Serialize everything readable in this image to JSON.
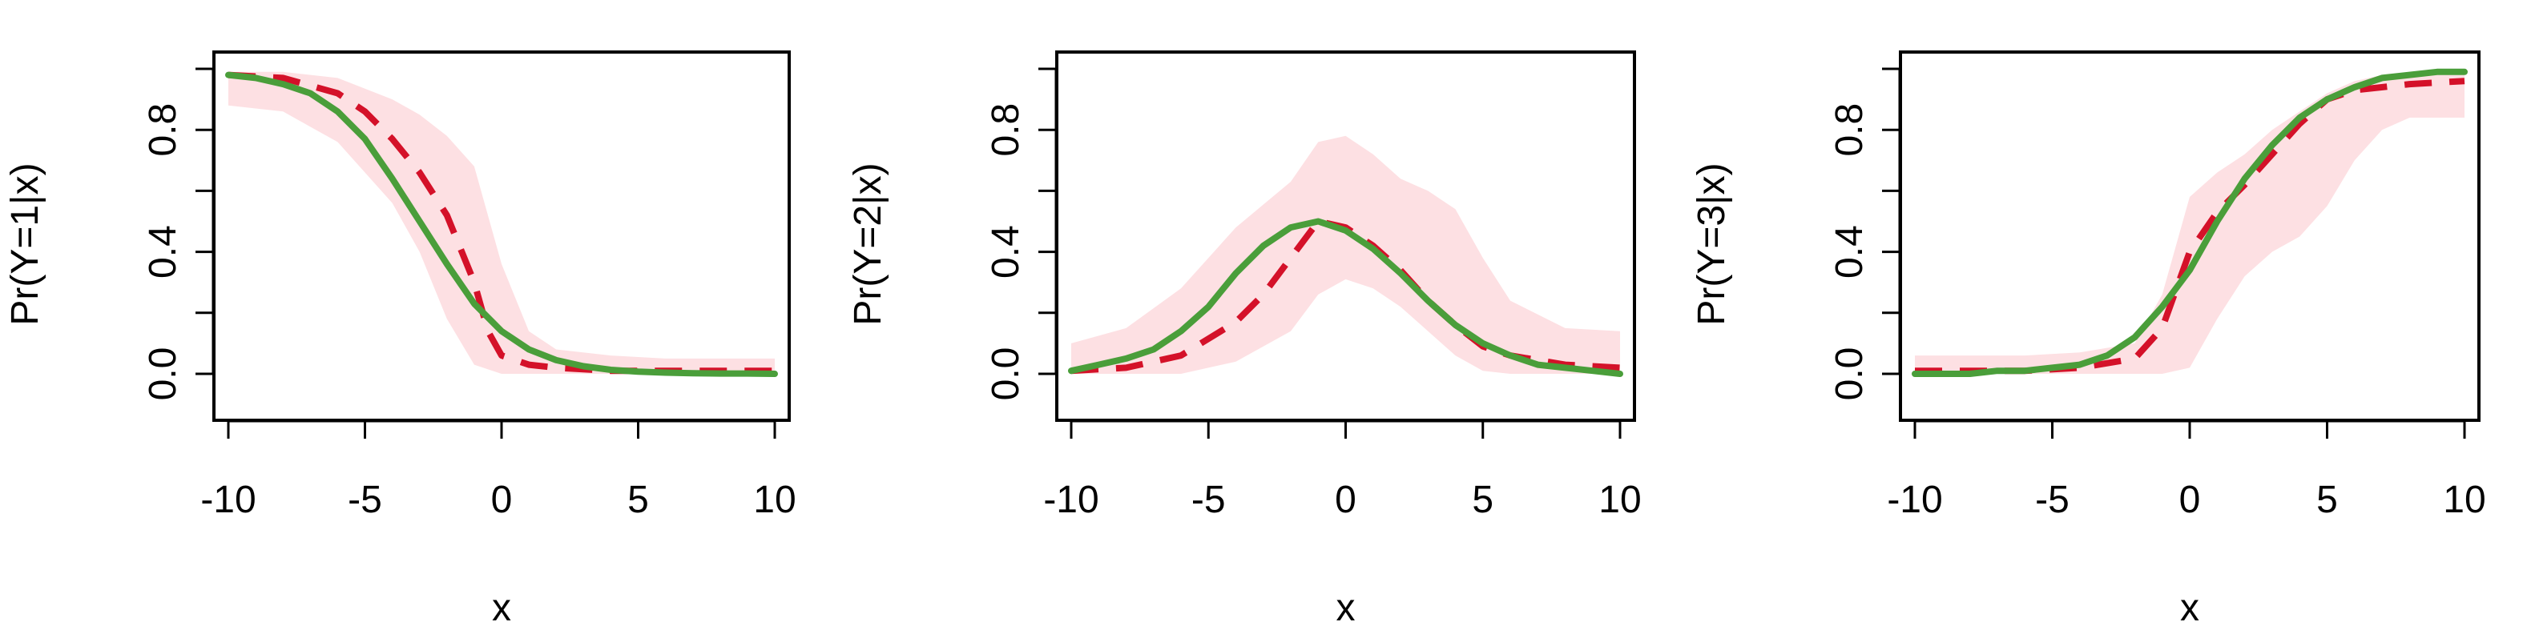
{
  "chart_data": [
    {
      "type": "line",
      "xlabel": "x",
      "ylabel": "Pr(Y=1|x)",
      "xlim": [
        -10,
        10
      ],
      "ylim": [
        0,
        1
      ],
      "xticks": [
        "-10",
        "-5",
        "0",
        "5",
        "10"
      ],
      "yticks": [
        "0.0",
        "0.4",
        "0.8"
      ],
      "grid": false,
      "band": {
        "color": "#fde0e3",
        "x": [
          -10,
          -8,
          -6,
          -4,
          -3,
          -2,
          -1,
          0,
          1,
          2,
          4,
          6,
          8,
          10
        ],
        "lower": [
          0.88,
          0.86,
          0.76,
          0.56,
          0.4,
          0.18,
          0.03,
          0.0,
          0.0,
          0.0,
          0.0,
          0.0,
          0.0,
          0.0
        ],
        "upper": [
          0.99,
          0.99,
          0.97,
          0.9,
          0.85,
          0.78,
          0.68,
          0.36,
          0.14,
          0.08,
          0.06,
          0.05,
          0.05,
          0.05
        ]
      },
      "series": [
        {
          "style": "dashed",
          "color": "#d41129",
          "x": [
            -10,
            -8,
            -6,
            -5,
            -4,
            -3,
            -2,
            -1,
            -0.5,
            0,
            1,
            2,
            4,
            6,
            8,
            10
          ],
          "y": [
            0.98,
            0.97,
            0.92,
            0.86,
            0.77,
            0.66,
            0.52,
            0.3,
            0.14,
            0.06,
            0.03,
            0.02,
            0.01,
            0.01,
            0.01,
            0.01
          ]
        },
        {
          "style": "solid",
          "color": "#4a9e3a",
          "x": [
            -10,
            -9,
            -8,
            -7,
            -6,
            -5,
            -4,
            -3,
            -2,
            -1,
            0,
            1,
            2,
            3,
            4,
            5,
            6,
            7,
            8,
            9,
            10
          ],
          "y": [
            0.98,
            0.97,
            0.95,
            0.92,
            0.86,
            0.77,
            0.64,
            0.5,
            0.36,
            0.23,
            0.14,
            0.08,
            0.045,
            0.025,
            0.013,
            0.007,
            0.004,
            0.002,
            0.001,
            0.001,
            0.0
          ]
        }
      ]
    },
    {
      "type": "line",
      "xlabel": "x",
      "ylabel": "Pr(Y=2|x)",
      "xlim": [
        -10,
        10
      ],
      "ylim": [
        0,
        1
      ],
      "xticks": [
        "-10",
        "-5",
        "0",
        "5",
        "10"
      ],
      "yticks": [
        "0.0",
        "0.4",
        "0.8"
      ],
      "grid": false,
      "band": {
        "color": "#fde0e3",
        "x": [
          -10,
          -8,
          -6,
          -4,
          -2,
          -1,
          0,
          1,
          2,
          3,
          4,
          5,
          6,
          8,
          10
        ],
        "lower": [
          0.0,
          0.0,
          0.0,
          0.04,
          0.14,
          0.26,
          0.31,
          0.28,
          0.22,
          0.14,
          0.06,
          0.01,
          0.0,
          0.0,
          0.0
        ],
        "upper": [
          0.1,
          0.15,
          0.28,
          0.48,
          0.63,
          0.76,
          0.78,
          0.72,
          0.64,
          0.6,
          0.54,
          0.38,
          0.24,
          0.15,
          0.14
        ]
      },
      "series": [
        {
          "style": "dashed",
          "color": "#d41129",
          "x": [
            -10,
            -8,
            -6,
            -4,
            -3,
            -2,
            -1,
            0,
            1,
            2,
            3,
            4,
            5,
            6,
            8,
            10
          ],
          "y": [
            0.01,
            0.02,
            0.06,
            0.17,
            0.26,
            0.38,
            0.5,
            0.48,
            0.42,
            0.34,
            0.24,
            0.16,
            0.09,
            0.06,
            0.03,
            0.02
          ]
        },
        {
          "style": "solid",
          "color": "#4a9e3a",
          "x": [
            -10,
            -9,
            -8,
            -7,
            -6,
            -5,
            -4,
            -3,
            -2,
            -1,
            0,
            1,
            2,
            3,
            4,
            5,
            6,
            7,
            8,
            9,
            10
          ],
          "y": [
            0.01,
            0.03,
            0.05,
            0.08,
            0.14,
            0.22,
            0.33,
            0.42,
            0.48,
            0.5,
            0.47,
            0.41,
            0.33,
            0.24,
            0.16,
            0.1,
            0.06,
            0.03,
            0.02,
            0.01,
            0.0
          ]
        }
      ]
    },
    {
      "type": "line",
      "xlabel": "x",
      "ylabel": "Pr(Y=3|x)",
      "xlim": [
        -10,
        10
      ],
      "ylim": [
        0,
        1
      ],
      "xticks": [
        "-10",
        "-5",
        "0",
        "5",
        "10"
      ],
      "yticks": [
        "0.0",
        "0.4",
        "0.8"
      ],
      "grid": false,
      "band": {
        "color": "#fde0e3",
        "x": [
          -10,
          -8,
          -6,
          -4,
          -2,
          -1,
          0,
          1,
          2,
          3,
          4,
          5,
          6,
          7,
          8,
          10
        ],
        "lower": [
          0.0,
          0.0,
          0.0,
          0.0,
          0.0,
          0.0,
          0.02,
          0.18,
          0.32,
          0.4,
          0.45,
          0.55,
          0.7,
          0.8,
          0.84,
          0.84
        ],
        "upper": [
          0.06,
          0.06,
          0.06,
          0.07,
          0.1,
          0.26,
          0.58,
          0.66,
          0.72,
          0.8,
          0.86,
          0.92,
          0.96,
          0.98,
          0.98,
          0.98
        ]
      },
      "series": [
        {
          "style": "dashed",
          "color": "#d41129",
          "x": [
            -10,
            -8,
            -6,
            -4,
            -2,
            -1,
            0,
            1,
            2,
            3,
            4,
            5,
            6,
            8,
            10
          ],
          "y": [
            0.01,
            0.01,
            0.01,
            0.02,
            0.05,
            0.15,
            0.4,
            0.53,
            0.62,
            0.72,
            0.82,
            0.9,
            0.93,
            0.95,
            0.96
          ]
        },
        {
          "style": "solid",
          "color": "#4a9e3a",
          "x": [
            -10,
            -9,
            -8,
            -7,
            -6,
            -5,
            -4,
            -3,
            -2,
            -1,
            0,
            1,
            2,
            3,
            4,
            5,
            6,
            7,
            8,
            9,
            10
          ],
          "y": [
            0.0,
            0.0,
            0.0,
            0.01,
            0.01,
            0.02,
            0.03,
            0.06,
            0.12,
            0.22,
            0.34,
            0.5,
            0.64,
            0.75,
            0.84,
            0.9,
            0.94,
            0.97,
            0.98,
            0.99,
            0.99
          ]
        }
      ]
    }
  ]
}
